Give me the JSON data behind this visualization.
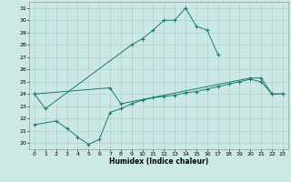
{
  "xlabel": "Humidex (Indice chaleur)",
  "background_color": "#cce8e4",
  "grid_color": "#aad4d0",
  "line_color": "#1a7a6e",
  "xlim": [
    -0.5,
    23.5
  ],
  "ylim": [
    19.5,
    31.5
  ],
  "xticks": [
    0,
    1,
    2,
    3,
    4,
    5,
    6,
    7,
    8,
    9,
    10,
    11,
    12,
    13,
    14,
    15,
    16,
    17,
    18,
    19,
    20,
    21,
    22,
    23
  ],
  "yticks": [
    20,
    21,
    22,
    23,
    24,
    25,
    26,
    27,
    28,
    29,
    30,
    31
  ],
  "series": {
    "top": [
      24.0,
      22.8,
      null,
      null,
      null,
      null,
      null,
      null,
      null,
      28.0,
      28.5,
      29.2,
      30.0,
      30.0,
      31.0,
      29.5,
      29.2,
      27.2,
      null,
      null,
      null,
      null,
      null,
      null
    ],
    "mid": [
      24.0,
      null,
      null,
      null,
      null,
      null,
      null,
      24.5,
      23.2,
      null,
      null,
      null,
      null,
      null,
      null,
      null,
      null,
      null,
      null,
      null,
      25.3,
      25.3,
      24.0,
      24.0
    ],
    "bot": [
      21.5,
      null,
      21.8,
      21.2,
      20.5,
      19.9,
      20.3,
      22.5,
      22.8,
      23.2,
      23.5,
      23.7,
      23.8,
      23.9,
      24.1,
      24.2,
      24.4,
      24.6,
      24.8,
      25.0,
      25.2,
      25.0,
      24.0,
      24.0
    ]
  },
  "series2": {
    "line1_x": [
      0,
      1,
      9,
      10,
      11,
      12,
      13,
      14,
      15,
      16,
      17
    ],
    "line1_y": [
      24.0,
      22.8,
      28.0,
      28.5,
      29.2,
      30.0,
      30.0,
      31.0,
      29.5,
      29.2,
      27.2
    ],
    "line2_x": [
      0,
      7,
      8,
      20,
      21,
      22,
      23
    ],
    "line2_y": [
      24.0,
      24.5,
      23.2,
      25.3,
      25.3,
      24.0,
      24.0
    ],
    "line3_x": [
      0,
      2,
      3,
      4,
      5,
      6,
      7,
      8,
      9,
      10,
      11,
      12,
      13,
      14,
      15,
      16,
      17,
      18,
      19,
      20,
      21,
      22,
      23
    ],
    "line3_y": [
      21.5,
      21.8,
      21.2,
      20.5,
      19.9,
      20.3,
      22.5,
      22.8,
      23.2,
      23.5,
      23.7,
      23.8,
      23.9,
      24.1,
      24.2,
      24.4,
      24.6,
      24.8,
      25.0,
      25.2,
      25.0,
      24.0,
      24.0
    ]
  }
}
